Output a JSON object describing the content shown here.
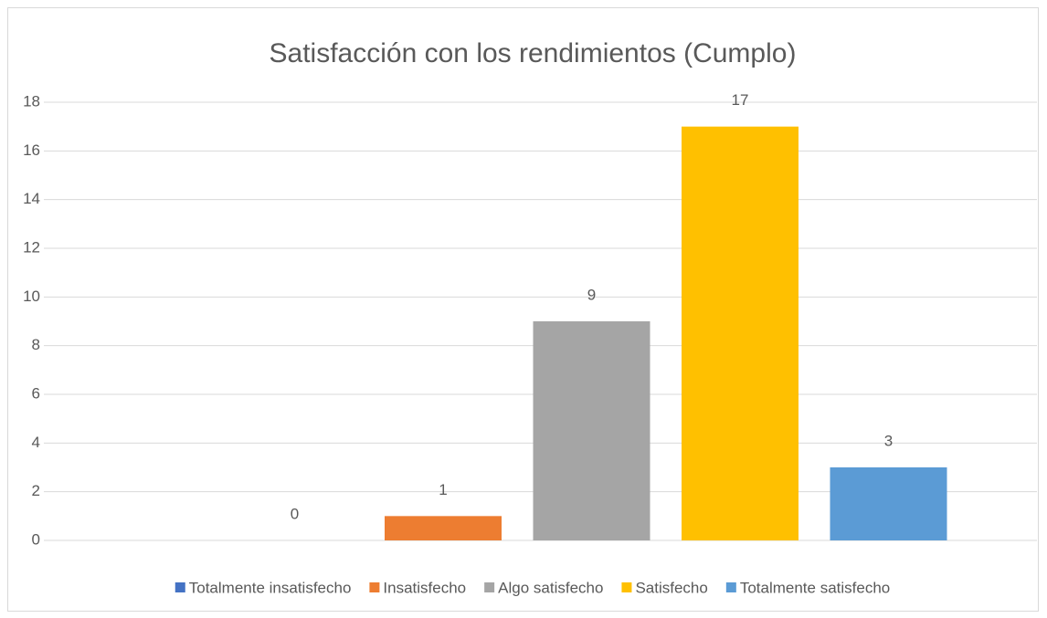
{
  "chart_data": {
    "type": "bar",
    "title": "Satisfacción con los rendimientos (Cumplo)",
    "categories": [
      null
    ],
    "series": [
      {
        "name": "Totalmente insatisfecho",
        "color": "#4472c4",
        "values": [
          0
        ]
      },
      {
        "name": "Insatisfecho",
        "color": "#ed7d31",
        "values": [
          1
        ]
      },
      {
        "name": "Algo satisfecho",
        "color": "#a5a5a5",
        "values": [
          9
        ]
      },
      {
        "name": "Satisfecho",
        "color": "#ffc000",
        "values": [
          17
        ]
      },
      {
        "name": "Totalmente satisfecho",
        "color": "#5b9bd5",
        "values": [
          3
        ]
      }
    ],
    "ylim": [
      0,
      18
    ],
    "yticks": [
      0,
      2,
      4,
      6,
      8,
      10,
      12,
      14,
      16,
      18
    ],
    "grid": true,
    "legend": "bottom"
  }
}
